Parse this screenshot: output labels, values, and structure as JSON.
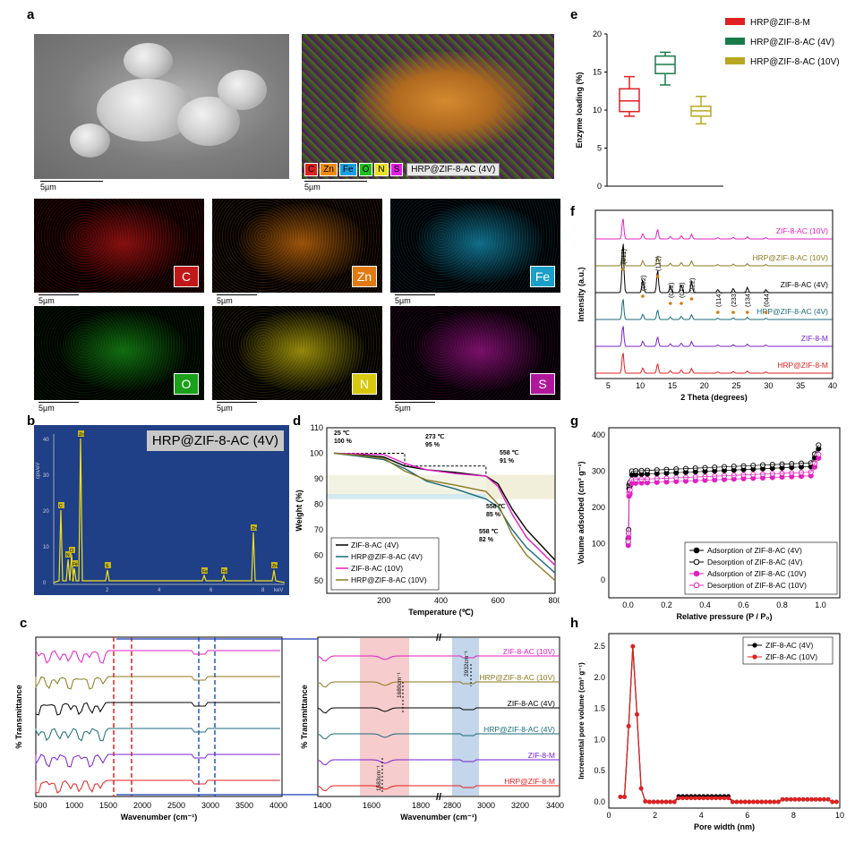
{
  "panels": {
    "a": {
      "label": "a",
      "sem_scale": "5µm",
      "overlay_scale": "5µm",
      "map_scale": "5µm",
      "legend_elements": [
        {
          "sym": "C",
          "color": "#e02020"
        },
        {
          "sym": "Zn",
          "color": "#f08a10"
        },
        {
          "sym": "Fe",
          "color": "#1aa0e0"
        },
        {
          "sym": "O",
          "color": "#20c020"
        },
        {
          "sym": "N",
          "color": "#e8e020"
        },
        {
          "sym": "S",
          "color": "#e020e0"
        }
      ],
      "overlay_title": "HRP@ZIF-8-AC (4V)",
      "maps": [
        {
          "sym": "C",
          "bg": "#c01818",
          "tint": "#3a0000"
        },
        {
          "sym": "Zn",
          "bg": "#e07a10",
          "tint": "#2a1500"
        },
        {
          "sym": "Fe",
          "bg": "#1aa0c8",
          "tint": "#001a22"
        },
        {
          "sym": "O",
          "bg": "#1aa01a",
          "tint": "#001a00"
        },
        {
          "sym": "N",
          "bg": "#d8c810",
          "tint": "#1e1a00"
        },
        {
          "sym": "S",
          "bg": "#b0189a",
          "tint": "#22001c"
        }
      ]
    },
    "b": {
      "label": "b",
      "title": "HRP@ZIF-8-AC (4V)",
      "y_unit": "cps/eV",
      "x_unit": "keV",
      "peaks": [
        "C",
        "N",
        "O",
        "Fe",
        "Zn",
        "S",
        "Fe",
        "Fe",
        "Zn",
        "Zn"
      ],
      "yticks": [
        "0",
        "10",
        "20",
        "30",
        "40"
      ],
      "xticks": [
        "2",
        "4",
        "6",
        "8"
      ]
    },
    "c": {
      "label": "c"
    },
    "d": {
      "label": "d"
    },
    "e": {
      "label": "e"
    },
    "f": {
      "label": "f"
    },
    "g": {
      "label": "g"
    },
    "h": {
      "label": "h"
    }
  },
  "chart_data": [
    {
      "id": "c-left",
      "type": "line",
      "xlabel": "Wavenumber (cm⁻¹)",
      "ylabel": "% Transmittance",
      "xticks": [
        "500",
        "1000",
        "1500",
        "2000",
        "2500",
        "3000",
        "3500",
        "4000"
      ],
      "series": [
        {
          "name": "ZIF-8-AC (10V)",
          "color": "#e020c0"
        },
        {
          "name": "HRP@ZIF-8-AC (10V)",
          "color": "#8a7a20"
        },
        {
          "name": "ZIF-8-AC (4V)",
          "color": "#000000"
        },
        {
          "name": "HRP@ZIF-8-AC (4V)",
          "color": "#1a6a78"
        },
        {
          "name": "ZIF-8-M",
          "color": "#7a20d0"
        },
        {
          "name": "HRP@ZIF-8-M",
          "color": "#e02020"
        }
      ]
    },
    {
      "id": "c-right",
      "type": "line",
      "xlabel": "Wavenumber (cm⁻¹)",
      "ylabel": "% Transmittance",
      "xticks": [
        "1400",
        "1600",
        "1800",
        "2800",
        "3000",
        "3200",
        "3400"
      ],
      "annotations": [
        "1680cm⁻¹",
        "1583cm⁻¹",
        "2932cm⁻¹"
      ],
      "series": [
        {
          "name": "ZIF-8-AC (10V)",
          "color": "#e020c0"
        },
        {
          "name": "HRP@ZIF-8-AC (10V)",
          "color": "#8a7a20"
        },
        {
          "name": "ZIF-8-AC (4V)",
          "color": "#000000"
        },
        {
          "name": "HRP@ZIF-8-AC (4V)",
          "color": "#1a6a78"
        },
        {
          "name": "ZIF-8-M",
          "color": "#7a20d0"
        },
        {
          "name": "HRP@ZIF-8-M",
          "color": "#e02020"
        }
      ]
    },
    {
      "id": "d",
      "type": "line",
      "xlabel": "Temperature (℃)",
      "ylabel": "Weight (%)",
      "xlim": [
        0,
        800
      ],
      "ylim": [
        45,
        110
      ],
      "xticks": [
        "200",
        "400",
        "600",
        "800"
      ],
      "yticks": [
        "50",
        "60",
        "70",
        "80",
        "90",
        "100",
        "110"
      ],
      "annotations": [
        {
          "text": "25 ℃",
          "text2": "100 %",
          "x": 25,
          "y": 100
        },
        {
          "text": "273 ℃",
          "text2": "95 %",
          "x": 273,
          "y": 95
        },
        {
          "text": "558 ℃",
          "text2": "91 %",
          "x": 558,
          "y": 91
        },
        {
          "text": "558 ℃",
          "text2": "85 %",
          "x": 558,
          "y": 85
        },
        {
          "text": "558 ℃",
          "text2": "82 %",
          "x": 558,
          "y": 82
        }
      ],
      "series": [
        {
          "name": "ZIF-8-AC (4V)",
          "color": "#000000",
          "x": [
            25,
            100,
            200,
            273,
            350,
            450,
            558,
            600,
            650,
            700,
            800
          ],
          "y": [
            100,
            99.5,
            98.5,
            95,
            93.5,
            92.5,
            91,
            88,
            78,
            70,
            58
          ]
        },
        {
          "name": "HRP@ZIF-8-AC (4V)",
          "color": "#1a6a78",
          "x": [
            25,
            100,
            200,
            273,
            350,
            450,
            558,
            600,
            650,
            700,
            800
          ],
          "y": [
            100,
            99,
            97.5,
            94,
            89,
            86,
            82,
            79,
            70,
            63,
            53
          ]
        },
        {
          "name": "ZIF-8-AC (10V)",
          "color": "#e020c0",
          "x": [
            25,
            100,
            200,
            273,
            350,
            450,
            558,
            600,
            650,
            700,
            800
          ],
          "y": [
            100,
            99.8,
            99.5,
            96,
            93.5,
            92,
            91,
            87,
            76,
            67,
            56
          ]
        },
        {
          "name": "HRP@ZIF-8-AC (10V)",
          "color": "#8a7a20",
          "x": [
            25,
            100,
            200,
            273,
            350,
            450,
            558,
            600,
            650,
            700,
            800
          ],
          "y": [
            100,
            99.3,
            98,
            93,
            89.5,
            87.5,
            85,
            80,
            68,
            60,
            50
          ]
        }
      ]
    },
    {
      "id": "e",
      "type": "box",
      "ylabel": "Enzyme loading (%)",
      "ylim": [
        0,
        20
      ],
      "yticks": [
        "0",
        "5",
        "10",
        "15",
        "20"
      ],
      "series": [
        {
          "name": "HRP@ZIF-8-M",
          "color": "#e02020",
          "min": 9.2,
          "q1": 9.8,
          "median": 11.2,
          "q3": 12.8,
          "max": 14.4
        },
        {
          "name": "HRP@ZIF-8-AC (4V)",
          "color": "#1a7a4a",
          "min": 13.3,
          "q1": 14.8,
          "median": 16.0,
          "q3": 17.1,
          "max": 17.6
        },
        {
          "name": "HRP@ZIF-8-AC (10V)",
          "color": "#b8a820",
          "min": 8.2,
          "q1": 9.2,
          "median": 9.9,
          "q3": 10.5,
          "max": 11.8
        }
      ]
    },
    {
      "id": "f",
      "type": "line",
      "xlabel": "2 Theta (degrees)",
      "ylabel": "Intensity (a.u.)",
      "xlim": [
        3,
        40
      ],
      "xticks": [
        "5",
        "10",
        "15",
        "20",
        "25",
        "30",
        "35",
        "40"
      ],
      "peak_labels": [
        "(011)",
        "(002)",
        "(112)",
        "(022)",
        "(013)",
        "(222)",
        "(114)",
        "(233)",
        "(134)",
        "(044)"
      ],
      "series": [
        {
          "name": "ZIF-8-AC (10V)",
          "color": "#e020c0"
        },
        {
          "name": "HRP@ZIF-8-AC (10V)",
          "color": "#8a7a20"
        },
        {
          "name": "ZIF-8-AC (4V)",
          "color": "#000000"
        },
        {
          "name": "HRP@ZIF-8-AC (4V)",
          "color": "#1a6a78"
        },
        {
          "name": "ZIF-8-M",
          "color": "#7a20d0"
        },
        {
          "name": "HRP@ZIF-8-M",
          "color": "#e02020"
        }
      ]
    },
    {
      "id": "g",
      "type": "scatter",
      "xlabel": "Relative pressure (P / P₀)",
      "ylabel": "Volume adsorbed (cm³ g⁻¹)",
      "xlim": [
        -0.1,
        1.1
      ],
      "ylim": [
        -50,
        420
      ],
      "xticks": [
        "0.0",
        "0.2",
        "0.4",
        "0.6",
        "0.8",
        "1.0"
      ],
      "yticks": [
        "0",
        "100",
        "200",
        "300",
        "400"
      ],
      "series": [
        {
          "name": "Adsorption of ZIF-8-AC (4V)",
          "color": "#000000",
          "filled": true
        },
        {
          "name": "Desorption of ZIF-8-AC (4V)",
          "color": "#000000",
          "filled": false
        },
        {
          "name": "Adsorption of ZIF-8-AC (10V)",
          "color": "#e020c0",
          "filled": true
        },
        {
          "name": "Desorption of ZIF-8-AC (10V)",
          "color": "#e020c0",
          "filled": false
        }
      ]
    },
    {
      "id": "h",
      "type": "line",
      "xlabel": "Pore width (nm)",
      "ylabel": "Incremental pore volume (cm³ g⁻¹)",
      "xlim": [
        0,
        10
      ],
      "ylim": [
        -0.1,
        2.7
      ],
      "xticks": [
        "0",
        "2",
        "4",
        "6",
        "8",
        "10"
      ],
      "yticks": [
        "0.0",
        "0.5",
        "1.0",
        "1.5",
        "2.0",
        "2.5"
      ],
      "series": [
        {
          "name": "ZIF-8-AC (4V)",
          "color": "#000000"
        },
        {
          "name": "ZIF-8-AC (10V)",
          "color": "#e02020"
        }
      ]
    }
  ]
}
